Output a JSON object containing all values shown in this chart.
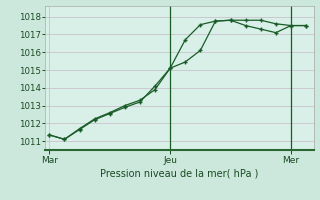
{
  "background_color": "#cce8dc",
  "grid_color": "#c8b8c8",
  "plot_bg": "#d8f0e8",
  "line_color": "#1a5c28",
  "axis_color": "#2a6632",
  "marker": "+",
  "xlabel": "Pression niveau de la mer( hPa )",
  "ylim": [
    1010.5,
    1018.6
  ],
  "yticks": [
    1011,
    1012,
    1013,
    1014,
    1015,
    1016,
    1017,
    1018
  ],
  "xtick_positions": [
    0,
    8,
    16
  ],
  "xtick_labels": [
    "Mar",
    "Jeu",
    "Mer"
  ],
  "vlines_dark": [
    8,
    16
  ],
  "line1_x": [
    0,
    1,
    2,
    3,
    4,
    5,
    6,
    7,
    8,
    9,
    10,
    11,
    12,
    13,
    14,
    15,
    16,
    17
  ],
  "line1_y": [
    1011.35,
    1011.1,
    1011.7,
    1012.25,
    1012.6,
    1013.0,
    1013.3,
    1013.9,
    1015.1,
    1016.7,
    1017.55,
    1017.75,
    1017.8,
    1017.5,
    1017.3,
    1017.1,
    1017.5,
    1017.5
  ],
  "line2_x": [
    0,
    1,
    2,
    3,
    4,
    5,
    6,
    7,
    8,
    9,
    10,
    11,
    12,
    13,
    14,
    15,
    16,
    17
  ],
  "line2_y": [
    1011.35,
    1011.1,
    1011.65,
    1012.2,
    1012.55,
    1012.9,
    1013.2,
    1014.1,
    1015.1,
    1015.45,
    1016.1,
    1017.75,
    1017.8,
    1017.8,
    1017.8,
    1017.6,
    1017.5,
    1017.5
  ],
  "figsize": [
    3.2,
    2.0
  ],
  "dpi": 100
}
